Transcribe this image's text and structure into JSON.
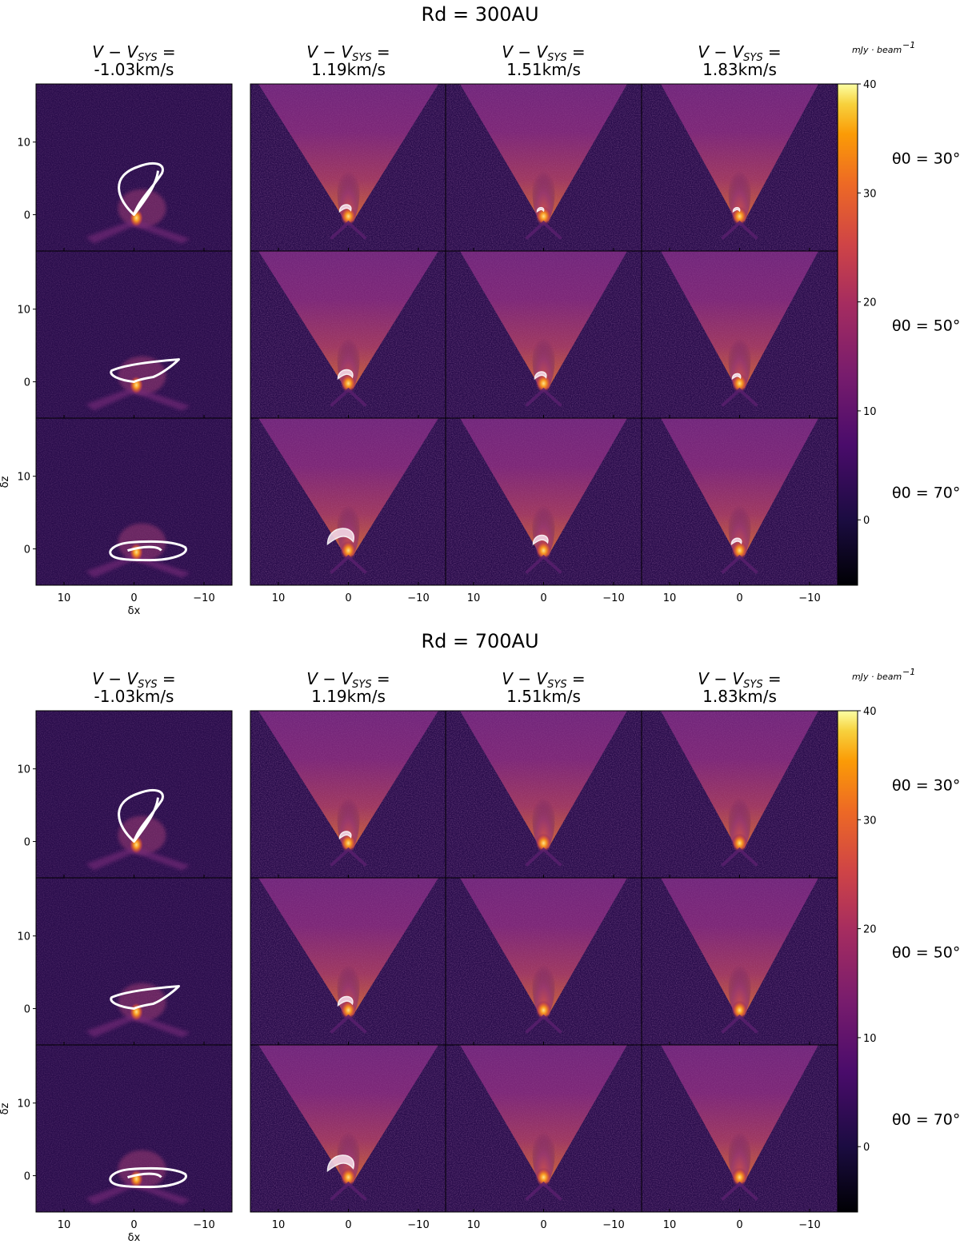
{
  "chart_data": {
    "type": "heatmap",
    "description_units": "intensity in mJy·beam^-1, axes δx, δz",
    "colormap": "inferno",
    "colorbar": {
      "label": "mJy · beam⁻¹",
      "range": [
        -6,
        40
      ],
      "ticks": [
        0,
        10,
        20,
        30,
        40
      ]
    },
    "xaxis": {
      "label": "δx",
      "ticks": [
        10,
        0,
        -10
      ],
      "range": [
        14,
        -14
      ]
    },
    "yaxis": {
      "label": "δz",
      "ticks": [
        0,
        10
      ],
      "range": [
        -5,
        18
      ]
    },
    "velocity_headers": [
      {
        "line1": "V − V_SYS =",
        "line2": "-1.03km/s",
        "value_kms": -1.03
      },
      {
        "line1": "V − V_SYS =",
        "line2": "1.19km/s",
        "value_kms": 1.19
      },
      {
        "line1": "V − V_SYS =",
        "line2": "1.51km/s",
        "value_kms": 1.51
      },
      {
        "line1": "V − V_SYS =",
        "line2": "1.83km/s",
        "value_kms": 1.83
      }
    ],
    "row_labels": [
      "θ₀ = 30°",
      "θ₀ = 50°",
      "θ₀ = 70°"
    ],
    "theta0_deg": [
      30,
      50,
      70
    ],
    "groups": [
      {
        "title": "R_d = 300AU",
        "Rd_au": 300
      },
      {
        "title": "R_d = 700AU",
        "Rd_au": 700
      }
    ]
  },
  "labels": {
    "group1_title": "Rd = 300AU",
    "group2_title": "Rd = 700AU",
    "vel_line1": "V − V",
    "vel_sub": "SYS",
    "vel_eq": " =",
    "vel_1": "-1.03km/s",
    "vel_2": "1.19km/s",
    "vel_3": "1.51km/s",
    "vel_4": "1.83km/s",
    "cbar_label": "mJy · beam",
    "cbar_exp": "−1",
    "theta_1": "θ0 = 30°",
    "theta_2": "θ0 = 50°",
    "theta_3": "θ0 = 70°",
    "x_label": "δx",
    "y_label": "δz",
    "x_tick_1": "10",
    "x_tick_2": "0",
    "x_tick_3": "−10",
    "y_tick_1": "10",
    "y_tick_2": "0",
    "cb_tick_0": "0",
    "cb_tick_10": "10",
    "cb_tick_20": "20",
    "cb_tick_30": "30",
    "cb_tick_40": "40"
  },
  "colors": {
    "bg_dark": "#2a0b4a",
    "mid": "#7b2a8a",
    "bright": "#f58a2a",
    "contour": "#ffffff"
  }
}
